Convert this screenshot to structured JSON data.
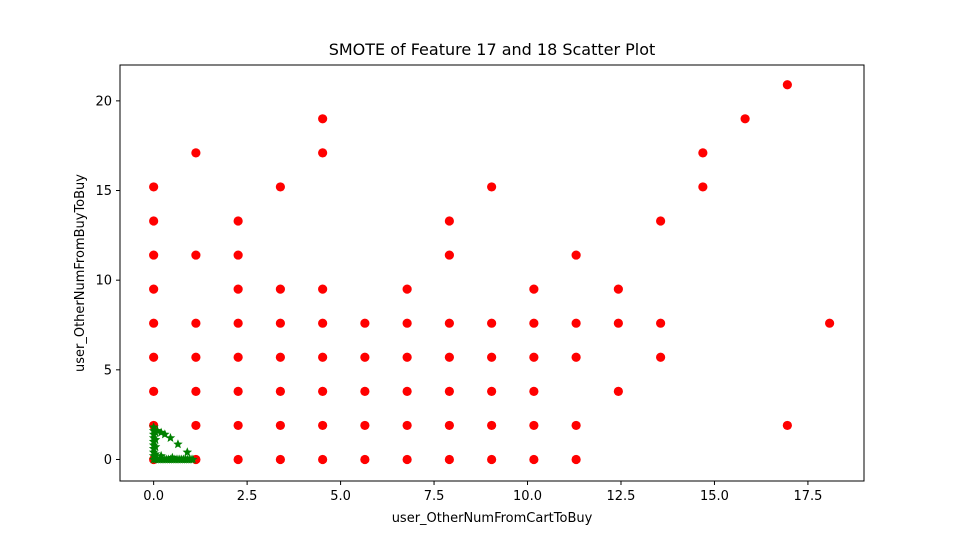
{
  "chart_data": {
    "type": "scatter",
    "title": "SMOTE of Feature 17 and 18 Scatter Plot",
    "xlabel": "user_OtherNumFromCartToBuy",
    "ylabel": "user_OtherNumFromBuyToBuy",
    "xlim": [
      -0.9,
      19.0
    ],
    "ylim": [
      -1.2,
      22.0
    ],
    "xticks": [
      0.0,
      2.5,
      5.0,
      7.5,
      10.0,
      12.5,
      15.0,
      17.5
    ],
    "xtick_labels": [
      "0.0",
      "2.5",
      "5.0",
      "7.5",
      "10.0",
      "12.5",
      "15.0",
      "17.5"
    ],
    "yticks": [
      0,
      5,
      10,
      15,
      20
    ],
    "ytick_labels": [
      "0",
      "5",
      "10",
      "15",
      "20"
    ],
    "grid": false,
    "series": [
      {
        "marker": "circle",
        "color": "#ff0000",
        "points": [
          [
            0,
            0
          ],
          [
            0,
            1.9
          ],
          [
            0,
            3.8
          ],
          [
            0,
            5.7
          ],
          [
            0,
            7.6
          ],
          [
            0,
            9.5
          ],
          [
            0,
            11.4
          ],
          [
            0,
            13.3
          ],
          [
            0,
            15.2
          ],
          [
            1.13,
            0
          ],
          [
            1.13,
            1.9
          ],
          [
            1.13,
            3.8
          ],
          [
            1.13,
            5.7
          ],
          [
            1.13,
            7.6
          ],
          [
            1.13,
            11.4
          ],
          [
            1.13,
            17.1
          ],
          [
            2.26,
            0
          ],
          [
            2.26,
            1.9
          ],
          [
            2.26,
            3.8
          ],
          [
            2.26,
            5.7
          ],
          [
            2.26,
            7.6
          ],
          [
            2.26,
            9.5
          ],
          [
            2.26,
            11.4
          ],
          [
            2.26,
            13.3
          ],
          [
            3.39,
            0
          ],
          [
            3.39,
            1.9
          ],
          [
            3.39,
            3.8
          ],
          [
            3.39,
            5.7
          ],
          [
            3.39,
            7.6
          ],
          [
            3.39,
            9.5
          ],
          [
            3.39,
            15.2
          ],
          [
            4.52,
            0
          ],
          [
            4.52,
            1.9
          ],
          [
            4.52,
            3.8
          ],
          [
            4.52,
            5.7
          ],
          [
            4.52,
            7.6
          ],
          [
            4.52,
            9.5
          ],
          [
            4.52,
            17.1
          ],
          [
            4.52,
            19.0
          ],
          [
            5.65,
            0
          ],
          [
            5.65,
            1.9
          ],
          [
            5.65,
            3.8
          ],
          [
            5.65,
            5.7
          ],
          [
            5.65,
            7.6
          ],
          [
            6.78,
            0
          ],
          [
            6.78,
            1.9
          ],
          [
            6.78,
            3.8
          ],
          [
            6.78,
            5.7
          ],
          [
            6.78,
            7.6
          ],
          [
            6.78,
            9.5
          ],
          [
            7.91,
            0
          ],
          [
            7.91,
            1.9
          ],
          [
            7.91,
            3.8
          ],
          [
            7.91,
            5.7
          ],
          [
            7.91,
            7.6
          ],
          [
            7.91,
            11.4
          ],
          [
            7.91,
            13.3
          ],
          [
            9.04,
            0
          ],
          [
            9.04,
            1.9
          ],
          [
            9.04,
            3.8
          ],
          [
            9.04,
            5.7
          ],
          [
            9.04,
            7.6
          ],
          [
            9.04,
            15.2
          ],
          [
            10.17,
            0
          ],
          [
            10.17,
            1.9
          ],
          [
            10.17,
            3.8
          ],
          [
            10.17,
            5.7
          ],
          [
            10.17,
            7.6
          ],
          [
            10.17,
            9.5
          ],
          [
            11.3,
            0
          ],
          [
            11.3,
            1.9
          ],
          [
            11.3,
            5.7
          ],
          [
            11.3,
            7.6
          ],
          [
            11.3,
            11.4
          ],
          [
            12.43,
            3.8
          ],
          [
            12.43,
            7.6
          ],
          [
            12.43,
            9.5
          ],
          [
            13.56,
            5.7
          ],
          [
            13.56,
            7.6
          ],
          [
            13.56,
            13.3
          ],
          [
            14.69,
            15.2
          ],
          [
            14.69,
            17.1
          ],
          [
            15.82,
            19.0
          ],
          [
            16.95,
            1.9
          ],
          [
            16.95,
            20.9
          ],
          [
            18.08,
            7.6
          ]
        ]
      },
      {
        "marker": "star",
        "color": "#008000",
        "points": [
          [
            0,
            0
          ],
          [
            0,
            0.2
          ],
          [
            0,
            0.4
          ],
          [
            0,
            0.6
          ],
          [
            0,
            0.8
          ],
          [
            0,
            1.0
          ],
          [
            0,
            1.2
          ],
          [
            0,
            1.4
          ],
          [
            0,
            1.6
          ],
          [
            0,
            1.8
          ],
          [
            0.05,
            0
          ],
          [
            0.1,
            0
          ],
          [
            0.15,
            0
          ],
          [
            0.2,
            0
          ],
          [
            0.25,
            0
          ],
          [
            0.3,
            0
          ],
          [
            0.35,
            0
          ],
          [
            0.4,
            0
          ],
          [
            0.45,
            0
          ],
          [
            0.5,
            0
          ],
          [
            0.55,
            0
          ],
          [
            0.6,
            0
          ],
          [
            0.65,
            0
          ],
          [
            0.7,
            0
          ],
          [
            0.75,
            0
          ],
          [
            0.8,
            0
          ],
          [
            0.85,
            0
          ],
          [
            0.9,
            0
          ],
          [
            0.95,
            0
          ],
          [
            1.0,
            0
          ],
          [
            1.05,
            0
          ],
          [
            0.05,
            0.3
          ],
          [
            0.05,
            0.7
          ],
          [
            0.05,
            1.1
          ],
          [
            0.05,
            1.5
          ],
          [
            0.1,
            1.6
          ],
          [
            0.2,
            1.5
          ],
          [
            0.3,
            1.4
          ],
          [
            0.45,
            1.2
          ],
          [
            0.65,
            0.85
          ],
          [
            0.9,
            0.4
          ],
          [
            0.2,
            0.2
          ],
          [
            0.5,
            0.1
          ]
        ]
      }
    ]
  }
}
